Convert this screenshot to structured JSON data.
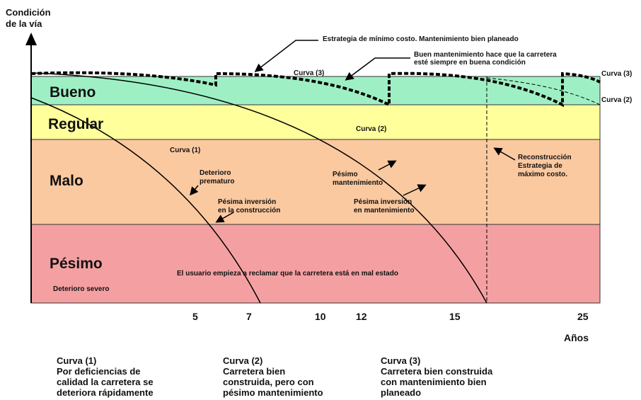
{
  "axis": {
    "y_label": [
      "Condición",
      "de la vía"
    ],
    "x_label": "Años",
    "years": [
      "5",
      "7",
      "10",
      "12",
      "15",
      "25"
    ]
  },
  "bands": [
    "Bueno",
    "Regular",
    "Malo",
    "Pésimo"
  ],
  "annotations": {
    "min_cost": "Estrategia de mínimo costo.  Mantenimiento bien planeado",
    "good_maintenance": [
      "Buen mantenimiento hace que la carretera",
      "esté siempre en buena condición"
    ],
    "curve3_top": "Curva (3)",
    "curve3_right": "Curva (3)",
    "curve2_right": "Curva (2)",
    "curve2": "Curva (2)",
    "curve1": "Curva (1)",
    "premature": [
      "Deterioro",
      "prematuro"
    ],
    "bad_construction": [
      "Pésima inversión",
      "en la construcción"
    ],
    "bad_maintenance": [
      "Pésimo",
      "mantenimiento"
    ],
    "bad_investment": [
      "Pésima inversión",
      "en mantenimiento"
    ],
    "reconstruction": [
      "Reconstrucción",
      "Estrategia de",
      "máximo costo."
    ],
    "user_complaint": "El usuario empieza a reclamar que la carretera está en mal estado",
    "severe": "Deterioro severo"
  },
  "captions": [
    [
      "Curva (1)",
      "Por deficiencias de",
      "calidad la carretera se",
      "deteriora rápidamente"
    ],
    [
      "Curva (2)",
      "Carretera bien",
      "construida, pero con",
      "pésimo mantenimiento"
    ],
    [
      "Curva (3)",
      "Carretera bien construida",
      "con mantenimiento bien",
      "planeado"
    ]
  ]
}
